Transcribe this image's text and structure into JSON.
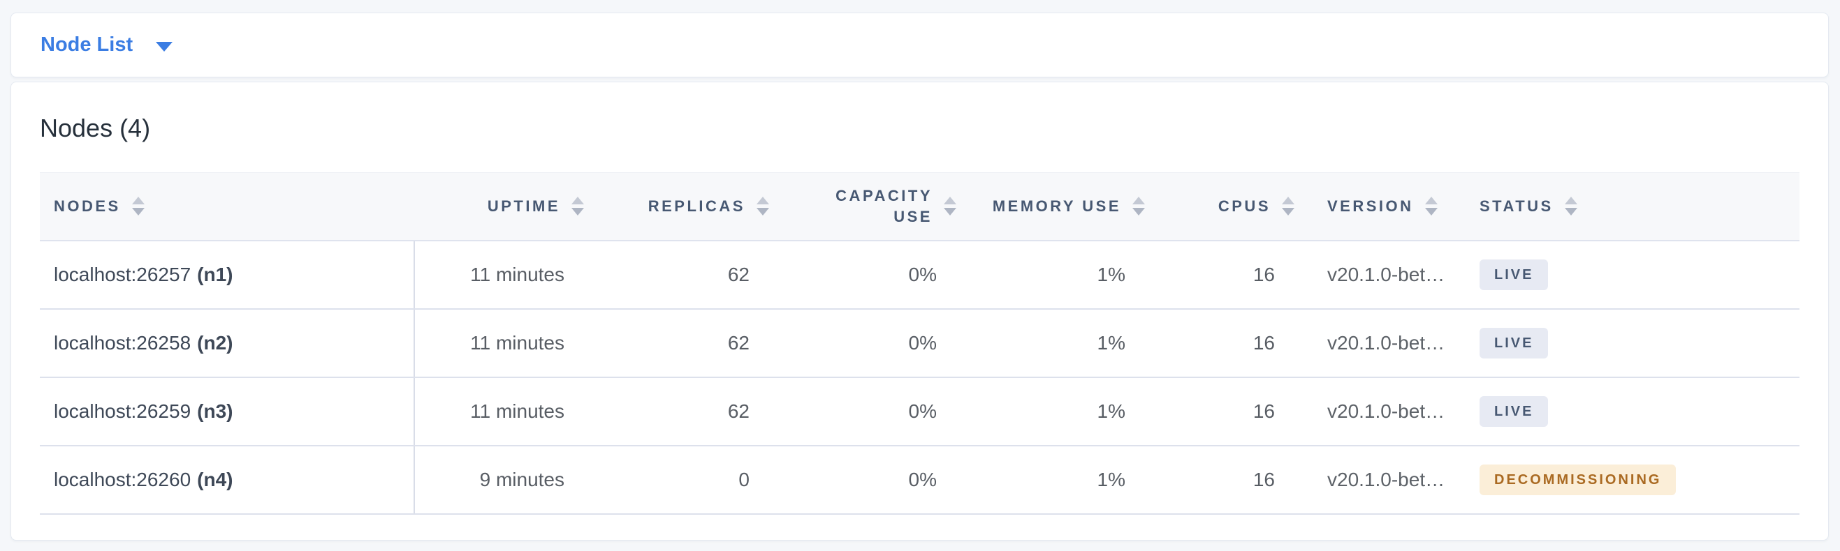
{
  "colors": {
    "accent_blue": "#3b7de3",
    "page_background": "#f5f7fa",
    "header_row_background": "#f7f8fa",
    "badge_live_background": "#e7eaf3",
    "badge_live_text": "#475872",
    "badge_decommissioning_background": "#fbeed8",
    "badge_decommissioning_text": "#aa6a22"
  },
  "view_selector": {
    "label": "Node List",
    "icon": "caret-down-icon"
  },
  "panel": {
    "title": "Nodes (4)",
    "table": {
      "columns": [
        {
          "key": "nodes",
          "label": "NODES",
          "align": "left"
        },
        {
          "key": "uptime",
          "label": "UPTIME",
          "align": "right"
        },
        {
          "key": "replicas",
          "label": "REPLICAS",
          "align": "right"
        },
        {
          "key": "capacity_use",
          "label": "CAPACITY USE",
          "align": "right"
        },
        {
          "key": "memory_use",
          "label": "MEMORY USE",
          "align": "right"
        },
        {
          "key": "cpus",
          "label": "CPUS",
          "align": "right"
        },
        {
          "key": "version",
          "label": "VERSION",
          "align": "left"
        },
        {
          "key": "status",
          "label": "STATUS",
          "align": "left"
        }
      ],
      "rows": [
        {
          "address": "localhost:26257",
          "node_id": "(n1)",
          "uptime": "11 minutes",
          "replicas": "62",
          "capacity_use": "0%",
          "memory_use": "1%",
          "cpus": "16",
          "version": "v20.1.0-bet…",
          "status": "LIVE",
          "status_variant": "live"
        },
        {
          "address": "localhost:26258",
          "node_id": "(n2)",
          "uptime": "11 minutes",
          "replicas": "62",
          "capacity_use": "0%",
          "memory_use": "1%",
          "cpus": "16",
          "version": "v20.1.0-bet…",
          "status": "LIVE",
          "status_variant": "live"
        },
        {
          "address": "localhost:26259",
          "node_id": "(n3)",
          "uptime": "11 minutes",
          "replicas": "62",
          "capacity_use": "0%",
          "memory_use": "1%",
          "cpus": "16",
          "version": "v20.1.0-bet…",
          "status": "LIVE",
          "status_variant": "live"
        },
        {
          "address": "localhost:26260",
          "node_id": "(n4)",
          "uptime": "9 minutes",
          "replicas": "0",
          "capacity_use": "0%",
          "memory_use": "1%",
          "cpus": "16",
          "version": "v20.1.0-bet…",
          "status": "DECOMMISSIONING",
          "status_variant": "decommissioning"
        }
      ]
    }
  }
}
